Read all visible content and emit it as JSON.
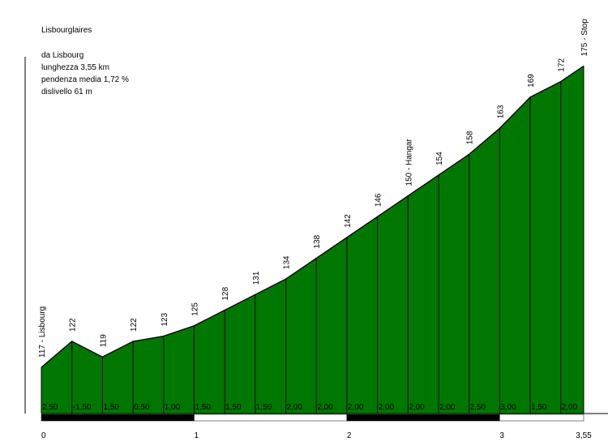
{
  "chart_data": {
    "type": "area",
    "title": "Lisbourglaires",
    "info": [
      "da Lisbourg",
      "lunghezza 3,55 km",
      "pendenza media 1,72 %",
      "dislivello 61 m"
    ],
    "x": [
      0,
      0.2,
      0.4,
      0.6,
      0.8,
      1.0,
      1.2,
      1.4,
      1.6,
      1.8,
      2.0,
      2.2,
      2.4,
      2.6,
      2.8,
      3.0,
      3.2,
      3.4,
      3.55
    ],
    "values": [
      117,
      122,
      119,
      122,
      123,
      125,
      128,
      131,
      134,
      138,
      142,
      146,
      150,
      154,
      158,
      163,
      169,
      172,
      175
    ],
    "value_labels": [
      "117 - Lisbourg",
      "122",
      "119",
      "122",
      "123",
      "125",
      "128",
      "131",
      "134",
      "138",
      "142",
      "146",
      "150 - Hangar",
      "154",
      "158",
      "163",
      "169",
      "172",
      "175 - Stop"
    ],
    "gradients": [
      2.5,
      -1.5,
      1.5,
      0.5,
      1.0,
      1.5,
      1.5,
      1.5,
      2.0,
      2.0,
      2.0,
      2.0,
      2.0,
      2.0,
      2.5,
      3.0,
      1.5,
      2.0
    ],
    "gradient_labels": [
      "2,50",
      "-1,50",
      "1,50",
      "0,50",
      "1,00",
      "1,50",
      "1,50",
      "1,50",
      "2,00",
      "2,00",
      "2,00",
      "2,00",
      "2,00",
      "2,00",
      "2,50",
      "3,00",
      "1,50",
      "2,00"
    ],
    "color": "#007700",
    "xlim": [
      0,
      3.55
    ],
    "xticks": [
      0,
      1,
      2,
      3,
      {
        "value": 3.55,
        "label": "3,55"
      }
    ],
    "ylim": [
      108.1,
      187.7
    ]
  }
}
